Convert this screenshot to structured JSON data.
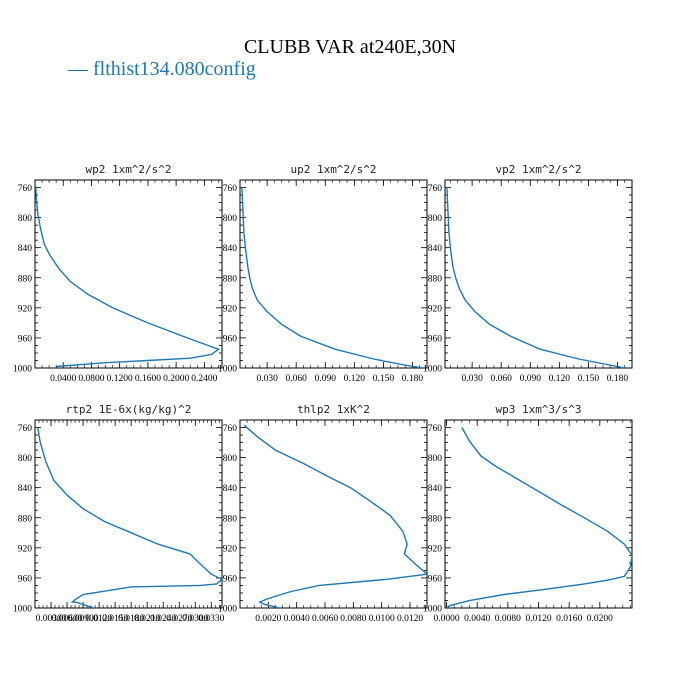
{
  "figure": {
    "title": "CLUBB VAR at240E,30N",
    "legend": {
      "dash": "—",
      "label": "flthist134.080config",
      "color": "#1f77b4"
    }
  },
  "chart_data": [
    {
      "type": "line",
      "title": "wp2   1xm^2/s^2",
      "y_ticks": [
        "760",
        "800",
        "840",
        "880",
        "920",
        "960",
        "1000"
      ],
      "ylim": [
        1000,
        750
      ],
      "x_ticks": [
        "0.0400",
        "0.0800",
        "0.1200",
        "0.1600",
        "0.2000",
        "0.2400"
      ],
      "x_tick_values": [
        0.04,
        0.08,
        0.12,
        0.16,
        0.2,
        0.24
      ],
      "xlim": [
        0.0,
        0.265
      ],
      "series": [
        {
          "color": "#1f77b4",
          "x": [
            0.001,
            0.002,
            0.004,
            0.008,
            0.013,
            0.021,
            0.034,
            0.05,
            0.075,
            0.11,
            0.16,
            0.21,
            0.245,
            0.26,
            0.25,
            0.22,
            0.16,
            0.1,
            0.03
          ],
          "y": [
            758,
            775,
            795,
            815,
            835,
            850,
            868,
            885,
            902,
            920,
            940,
            958,
            970,
            975,
            982,
            987,
            990,
            993,
            998
          ]
        }
      ]
    },
    {
      "type": "line",
      "title": "up2   1xm^2/s^2",
      "y_ticks": [
        "760",
        "800",
        "840",
        "880",
        "920",
        "960",
        "1000"
      ],
      "ylim": [
        1000,
        750
      ],
      "x_ticks": [
        "0.030",
        "0.060",
        "0.090",
        "0.120",
        "0.150",
        "0.180"
      ],
      "x_tick_values": [
        0.03,
        0.06,
        0.09,
        0.12,
        0.15,
        0.18
      ],
      "xlim": [
        0.002,
        0.195
      ],
      "series": [
        {
          "color": "#1f77b4",
          "x": [
            0.004,
            0.005,
            0.006,
            0.008,
            0.01,
            0.012,
            0.015,
            0.02,
            0.03,
            0.045,
            0.065,
            0.1,
            0.14,
            0.172,
            0.19
          ],
          "y": [
            760,
            790,
            820,
            845,
            865,
            880,
            895,
            910,
            925,
            942,
            958,
            975,
            988,
            996,
            1000
          ]
        }
      ]
    },
    {
      "type": "line",
      "title": "vp2   1xm^2/s^2",
      "y_ticks": [
        "760",
        "800",
        "840",
        "880",
        "920",
        "960",
        "1000"
      ],
      "ylim": [
        1000,
        750
      ],
      "x_ticks": [
        "0.030",
        "0.060",
        "0.090",
        "0.120",
        "0.150",
        "0.180"
      ],
      "x_tick_values": [
        0.03,
        0.06,
        0.09,
        0.12,
        0.15,
        0.18
      ],
      "xlim": [
        0.002,
        0.195
      ],
      "series": [
        {
          "color": "#1f77b4",
          "x": [
            0.004,
            0.005,
            0.006,
            0.008,
            0.01,
            0.013,
            0.017,
            0.023,
            0.033,
            0.048,
            0.07,
            0.1,
            0.14,
            0.172,
            0.188
          ],
          "y": [
            760,
            790,
            820,
            845,
            865,
            880,
            895,
            910,
            925,
            942,
            958,
            975,
            988,
            996,
            1000
          ]
        }
      ]
    },
    {
      "type": "line",
      "title": "rtp2   1E-6x(kg/kg)^2",
      "y_ticks": [
        "760",
        "800",
        "840",
        "880",
        "920",
        "960",
        "1000"
      ],
      "ylim": [
        1000,
        750
      ],
      "x_ticks": [
        "0.00300",
        "0.00600",
        "0.00900",
        "0.0120",
        "0.0150",
        "0.0180",
        "0.0210",
        "0.0240",
        "0.0270",
        "0.0300",
        "0.0330"
      ],
      "x_tick_values": [
        0.003,
        0.006,
        0.009,
        0.012,
        0.015,
        0.018,
        0.021,
        0.024,
        0.027,
        0.03,
        0.033
      ],
      "xlim": [
        0.0,
        0.035
      ],
      "series": [
        {
          "color": "#1f77b4",
          "x": [
            0.0005,
            0.001,
            0.002,
            0.0035,
            0.006,
            0.009,
            0.013,
            0.018,
            0.023,
            0.029,
            0.031,
            0.033,
            0.035,
            0.034,
            0.031,
            0.018,
            0.009,
            0.0075,
            0.007,
            0.008,
            0.011
          ],
          "y": [
            760,
            780,
            805,
            830,
            850,
            868,
            885,
            900,
            915,
            928,
            942,
            955,
            962,
            968,
            970,
            972,
            982,
            989,
            992,
            993,
            1000
          ]
        }
      ]
    },
    {
      "type": "line",
      "title": "thlp2   1xK^2",
      "y_ticks": [
        "760",
        "800",
        "840",
        "880",
        "920",
        "960",
        "1000"
      ],
      "ylim": [
        1000,
        750
      ],
      "x_ticks": [
        "0.0020",
        "0.0040",
        "0.0060",
        "0.0080",
        "0.0100",
        "0.0120"
      ],
      "x_tick_values": [
        0.002,
        0.004,
        0.006,
        0.008,
        0.01,
        0.012
      ],
      "xlim": [
        0.0,
        0.0132
      ],
      "series": [
        {
          "color": "#1f77b4",
          "x": [
            0.0003,
            0.0012,
            0.0025,
            0.0045,
            0.0062,
            0.0078,
            0.0092,
            0.0106,
            0.0115,
            0.0118,
            0.0116,
            0.0124,
            0.0132,
            0.0103,
            0.0056,
            0.0036,
            0.0019,
            0.0014,
            0.0017,
            0.0028
          ],
          "y": [
            757,
            772,
            790,
            808,
            825,
            840,
            858,
            877,
            898,
            915,
            928,
            942,
            955,
            962,
            970,
            978,
            988,
            992,
            995,
            1000
          ]
        }
      ]
    },
    {
      "type": "line",
      "title": "wp3   1xm^3/s^3",
      "y_ticks": [
        "760",
        "800",
        "840",
        "880",
        "920",
        "960",
        "1000"
      ],
      "ylim": [
        1000,
        750
      ],
      "x_ticks": [
        "0.0000",
        "0.0040",
        "0.0080",
        "0.0120",
        "0.0160",
        "0.0200"
      ],
      "x_tick_values": [
        0.0,
        0.004,
        0.008,
        0.012,
        0.016,
        0.02
      ],
      "xlim": [
        -0.0002,
        0.0242
      ],
      "series": [
        {
          "color": "#1f77b4",
          "x": [
            0.002,
            0.003,
            0.0045,
            0.0065,
            0.009,
            0.012,
            0.015,
            0.018,
            0.021,
            0.0232,
            0.0242,
            0.024,
            0.0232,
            0.021,
            0.018,
            0.013,
            0.0075,
            0.003,
            0.0004,
            0.0
          ],
          "y": [
            760,
            778,
            798,
            812,
            827,
            845,
            863,
            880,
            898,
            915,
            930,
            945,
            958,
            963,
            968,
            975,
            982,
            990,
            997,
            1000
          ]
        }
      ]
    }
  ]
}
